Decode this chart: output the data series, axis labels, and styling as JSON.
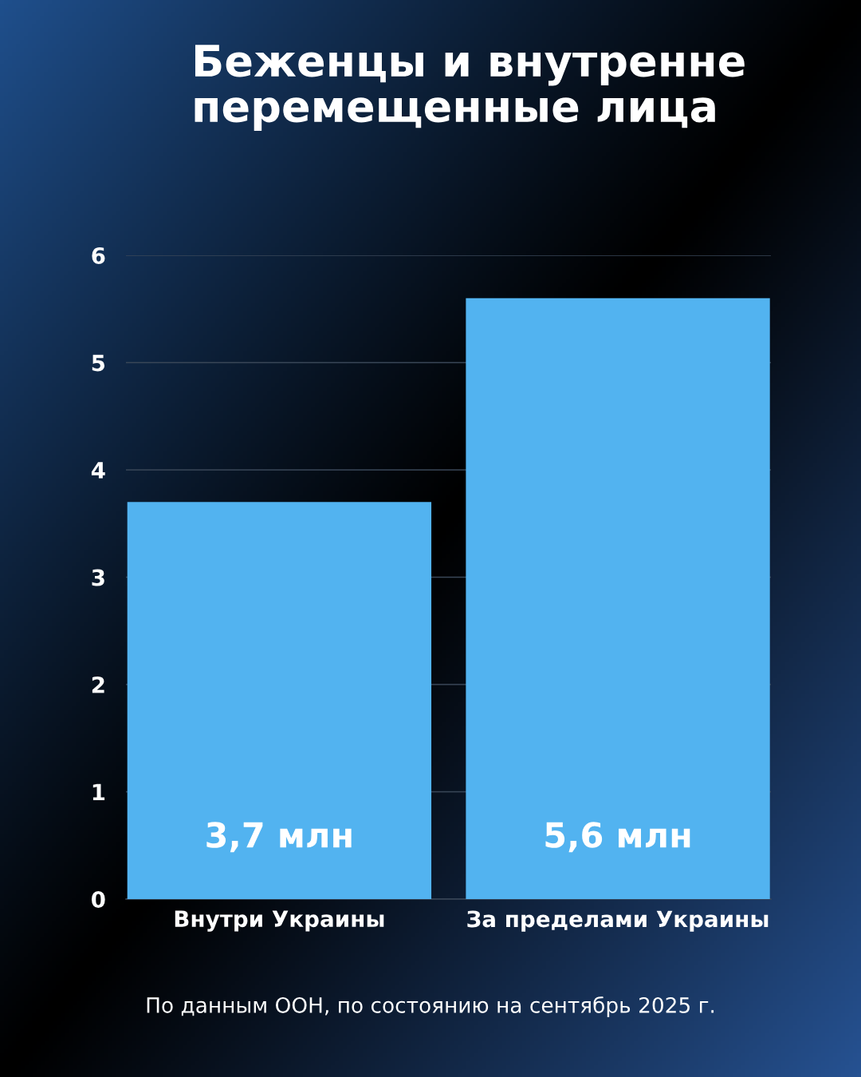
{
  "chart_data": {
    "type": "bar",
    "title": "Беженцы и внутренне\nперемещенные лица",
    "categories": [
      "Внутри Украины",
      "За пределами Украины"
    ],
    "values": [
      3.7,
      5.6
    ],
    "value_labels": [
      "3,7 млн",
      "5,6 млн"
    ],
    "color": "#52b3f0",
    "ylim": [
      0,
      6
    ],
    "yticks": [
      0,
      1,
      2,
      3,
      4,
      5,
      6
    ],
    "grid": "y",
    "annotations": [
      "По данным ООН, по состоянию на сентябрь 2025 г."
    ]
  }
}
